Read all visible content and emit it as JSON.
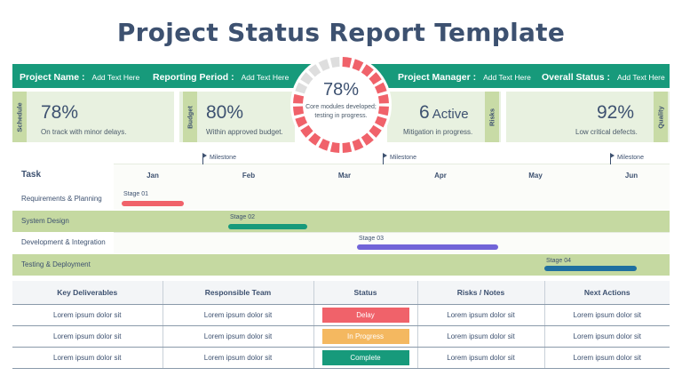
{
  "title": "Project Status Report Template",
  "header": {
    "project_name_label": "Project Name :",
    "project_name_value": "Add Text Here",
    "reporting_period_label": "Reporting Period :",
    "reporting_period_value": "Add Text Here",
    "project_manager_label": "Project Manager :",
    "project_manager_value": "Add Text Here",
    "overall_status_label": "Overall Status :",
    "overall_status_value": "Add Text Here"
  },
  "kpis": {
    "schedule": {
      "tag": "Schedule",
      "value": "78%",
      "note": "On track with minor delays."
    },
    "budget": {
      "tag": "Budget",
      "value": "80%",
      "note": "Within approved budget."
    },
    "risks": {
      "tag": "Risks",
      "value": "6",
      "value_suffix": "Active",
      "note": "Mitigation in progress."
    },
    "quality": {
      "tag": "Quality",
      "value": "92%",
      "note": "Low critical defects."
    }
  },
  "progress": {
    "value": "78%",
    "fraction": 0.78,
    "note": "Core modules developed; testing in progress."
  },
  "colors": {
    "accent_teal": "#179a7b",
    "navy": "#3d5170",
    "light_green": "#e8f1e0",
    "mid_green": "#c5d9a1",
    "red": "#f0626a",
    "orange": "#f4b860",
    "purple": "#7164d8",
    "blue": "#1f6fa0",
    "gauge_empty": "#dedede"
  },
  "gantt": {
    "task_header": "Task",
    "months": [
      "Jan",
      "Feb",
      "Mar",
      "Apr",
      "May",
      "Jun"
    ],
    "milestones": [
      "Milestone",
      "Milestone",
      "Milestone"
    ],
    "tasks": [
      {
        "name": "Requirements & Planning",
        "stage": "Stage 01"
      },
      {
        "name": "System Design",
        "stage": "Stage 02"
      },
      {
        "name": "Development & Integration",
        "stage": "Stage 03"
      },
      {
        "name": "Testing & Deployment",
        "stage": "Stage 04"
      }
    ]
  },
  "table": {
    "headers": [
      "Key Deliverables",
      "Responsible Team",
      "Status",
      "Risks / Notes",
      "Next Actions"
    ],
    "rows": [
      {
        "deliverable": "Lorem ipsum dolor sit",
        "team": "Lorem ipsum dolor sit",
        "status": "Delay",
        "notes": "Lorem ipsum dolor sit",
        "next": "Lorem ipsum dolor sit"
      },
      {
        "deliverable": "Lorem ipsum dolor sit",
        "team": "Lorem ipsum dolor sit",
        "status": "In Progress",
        "notes": "Lorem ipsum dolor sit",
        "next": "Lorem ipsum dolor sit"
      },
      {
        "deliverable": "Lorem ipsum dolor sit",
        "team": "Lorem ipsum dolor sit",
        "status": "Complete",
        "notes": "Lorem ipsum dolor sit",
        "next": "Lorem ipsum dolor sit"
      }
    ]
  }
}
